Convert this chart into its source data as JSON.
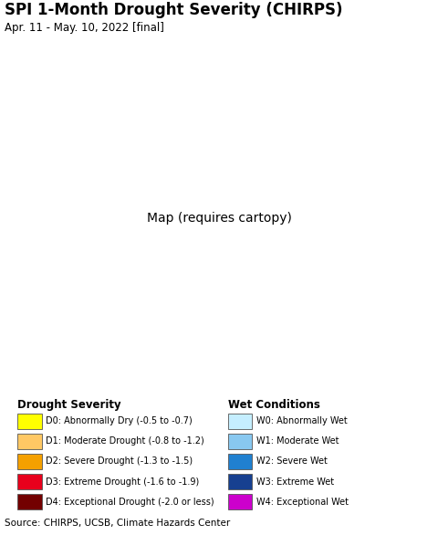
{
  "title": "SPI 1-Month Drought Severity (CHIRPS)",
  "subtitle": "Apr. 11 - May. 10, 2022 [final]",
  "title_fontsize": 12,
  "subtitle_fontsize": 8.5,
  "source_text": "Source: CHIRPS, UCSB, Climate Hazards Center",
  "ocean_color": "#aadff0",
  "land_outside_color": "#d4d4d4",
  "legend_drought": [
    {
      "code": "D0",
      "label": "D0: Abnormally Dry (-0.5 to -0.7)",
      "color": "#ffff00"
    },
    {
      "code": "D1",
      "label": "D1: Moderate Drought (-0.8 to -1.2)",
      "color": "#ffc864"
    },
    {
      "code": "D2",
      "label": "D2: Severe Drought (-1.3 to -1.5)",
      "color": "#f5a000"
    },
    {
      "code": "D3",
      "label": "D3: Extreme Drought (-1.6 to -1.9)",
      "color": "#e8001c"
    },
    {
      "code": "D4",
      "label": "D4: Exceptional Drought (-2.0 or less)",
      "color": "#730000"
    }
  ],
  "legend_wet": [
    {
      "code": "W0",
      "label": "W0: Abnormally Wet",
      "color": "#c5eeff"
    },
    {
      "code": "W1",
      "label": "W1: Moderate Wet",
      "color": "#88c8f0"
    },
    {
      "code": "W2",
      "label": "W2: Severe Wet",
      "color": "#2080d0"
    },
    {
      "code": "W3",
      "label": "W3: Extreme Wet",
      "color": "#174090"
    },
    {
      "code": "W4",
      "label": "W4: Exceptional Wet",
      "color": "#cc00cc"
    }
  ],
  "legend_drought_title": "Drought Severity",
  "legend_wet_title": "Wet Conditions",
  "map_extent": [
    55,
    107,
    4,
    42
  ],
  "fig_width": 4.8,
  "fig_height": 5.86,
  "dpi": 100
}
